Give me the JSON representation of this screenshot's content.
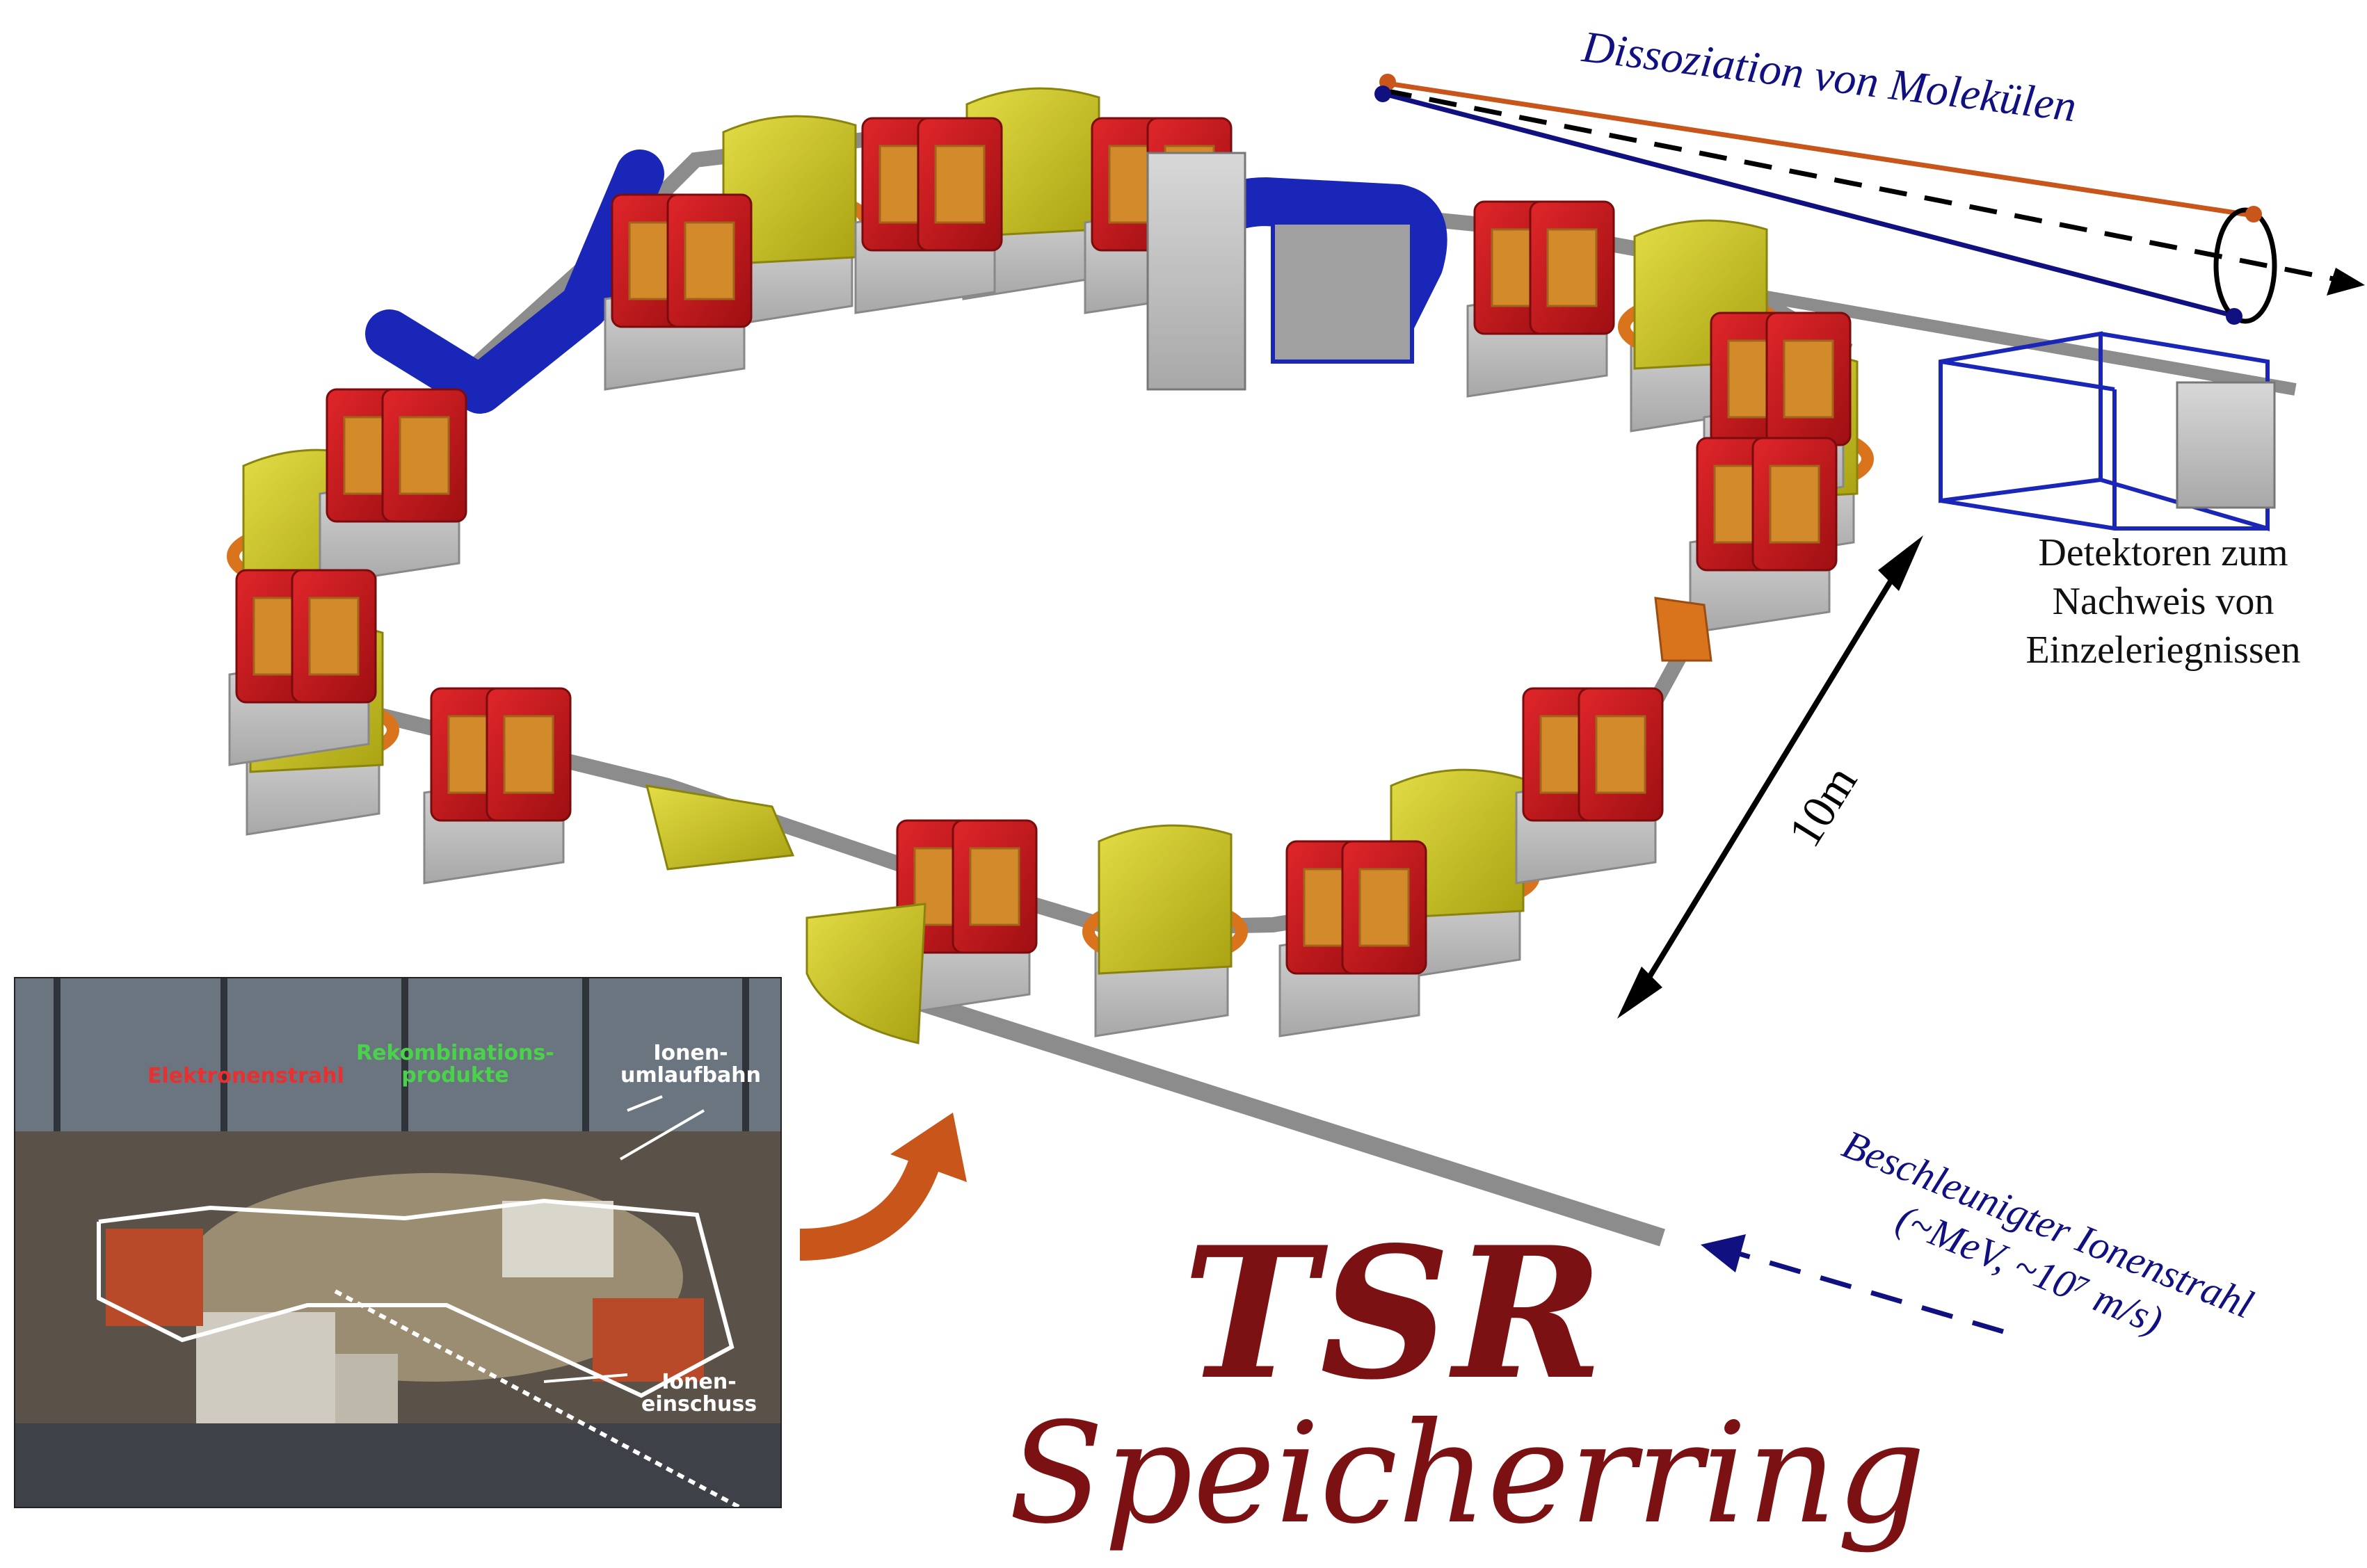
{
  "title": {
    "main": "TSR",
    "sub": "Speicherring"
  },
  "dissociation_label": "Dissoziation von Molekülen",
  "detector_label": [
    "Detektoren zum",
    "Nachweis von",
    "Einzeleriegnissen"
  ],
  "scale_label": "10m",
  "beam_label": [
    "Beschleunigter Ionenstrahl",
    "(~MeV, ~10⁷ m/s)"
  ],
  "photo": {
    "labels": {
      "electron_beam": "Elektronenstrahl",
      "recombination": [
        "Rekombinations-",
        "produkte"
      ],
      "ion_orbit": [
        "Ionen-",
        "umlaufbahn"
      ],
      "ion_injection": [
        "Ionen-",
        "einschuss"
      ]
    }
  },
  "colors": {
    "title": "#7b1113",
    "text_blue": "#101080",
    "dipole_red": "#c8161a",
    "quad_yellow": "#c9c21a",
    "support_grey": "#bfbfbf",
    "beampipe_blue": "#1a26b8",
    "coil_orange": "#d9741c",
    "arrow_orange": "#c8561a",
    "fragment_orange": "#c8561a"
  }
}
